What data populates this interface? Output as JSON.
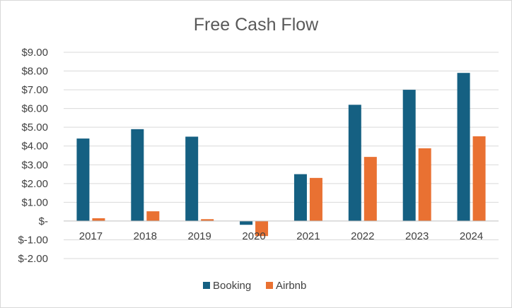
{
  "chart_data": {
    "type": "bar",
    "title": "Free Cash Flow",
    "xlabel": "",
    "ylabel": "",
    "categories": [
      "2017",
      "2018",
      "2019",
      "2020",
      "2021",
      "2022",
      "2023",
      "2024"
    ],
    "series": [
      {
        "name": "Booking",
        "color": "#156082",
        "values": [
          4.4,
          4.9,
          4.5,
          -0.2,
          2.5,
          6.2,
          7.0,
          7.9
        ]
      },
      {
        "name": "Airbnb",
        "color": "#E97132",
        "values": [
          0.15,
          0.52,
          0.1,
          -0.8,
          2.3,
          3.42,
          3.88,
          4.52
        ]
      }
    ],
    "ylim": [
      -2,
      9
    ],
    "yticks": [
      9,
      8,
      7,
      6,
      5,
      4,
      3,
      2,
      1,
      0,
      -1,
      -2
    ],
    "ytick_labels": [
      "$9.00",
      "$8.00",
      "$7.00",
      "$6.00",
      "$5.00",
      "$4.00",
      "$3.00",
      "$2.00",
      "$1.00",
      "$-",
      "$-1.00",
      "$-2.00"
    ],
    "grid": true,
    "legend_position": "bottom"
  }
}
